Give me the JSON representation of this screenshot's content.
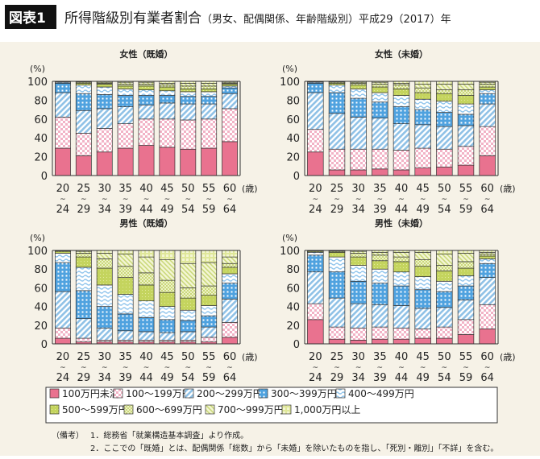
{
  "header": {
    "badge": "図表1",
    "title": "所得階級別有業者割合",
    "subtitle": "（男女、配偶関係、年齢階級別）平成29（2017）年"
  },
  "colors": {
    "background": "#f6f2e7",
    "under100": "#e9728f",
    "r100_199": "#f2b3c6",
    "r200_299": "#8fc1e6",
    "r300_399": "#4fa2df",
    "r400_499": "#a9d3f0",
    "r500_599": "#c4d45e",
    "r600_699": "#d9e3a0",
    "r700_999": "#dce69a",
    "over1000": "#e3ea9e"
  },
  "chart_data": [
    {
      "type": "bar",
      "stacked": true,
      "title": "女性（既婚）",
      "ylabel": "(%)",
      "ylim": [
        0,
        100
      ],
      "yticks": [
        "0",
        "20",
        "40",
        "60",
        "80",
        "100"
      ],
      "xunit": "(歳)",
      "categories": [
        [
          "20",
          "24"
        ],
        [
          "25",
          "29"
        ],
        [
          "30",
          "34"
        ],
        [
          "35",
          "39"
        ],
        [
          "40",
          "44"
        ],
        [
          "45",
          "49"
        ],
        [
          "50",
          "54"
        ],
        [
          "55",
          "59"
        ],
        [
          "60",
          "64"
        ]
      ],
      "values": [
        [
          29,
          33,
          26,
          10,
          1,
          0.5,
          0.3,
          0.2,
          0
        ],
        [
          21,
          24,
          24,
          18,
          9,
          2,
          1,
          0.5,
          0.5
        ],
        [
          25,
          25,
          21,
          15,
          8,
          3,
          1,
          1,
          1
        ],
        [
          29,
          26,
          18,
          12,
          7,
          3,
          2,
          2,
          1
        ],
        [
          32,
          28,
          15,
          10,
          6,
          4,
          2,
          2,
          1
        ],
        [
          30,
          30,
          17,
          8,
          5,
          4,
          2,
          2,
          2
        ],
        [
          28,
          31,
          17,
          8,
          5,
          3,
          3,
          3,
          2
        ],
        [
          29,
          31,
          16,
          8,
          5,
          3,
          3,
          3,
          2
        ],
        [
          36,
          35,
          16,
          6,
          2,
          2,
          1,
          1,
          1
        ]
      ]
    },
    {
      "type": "bar",
      "stacked": true,
      "title": "女性（未婚）",
      "ylabel": "(%)",
      "ylim": [
        0,
        100
      ],
      "yticks": [
        "0",
        "20",
        "40",
        "60",
        "80",
        "100"
      ],
      "xunit": "(歳)",
      "categories": [
        [
          "20",
          "24"
        ],
        [
          "25",
          "29"
        ],
        [
          "30",
          "34"
        ],
        [
          "35",
          "39"
        ],
        [
          "40",
          "44"
        ],
        [
          "45",
          "49"
        ],
        [
          "50",
          "54"
        ],
        [
          "55",
          "59"
        ],
        [
          "60",
          "64"
        ]
      ],
      "values": [
        [
          25,
          24,
          39,
          10,
          1,
          0.5,
          0.3,
          0.2,
          0
        ],
        [
          6,
          22,
          38,
          22,
          8,
          2,
          1,
          0.5,
          0.5
        ],
        [
          6,
          22,
          34,
          20,
          10,
          4,
          2,
          1,
          1
        ],
        [
          7,
          21,
          33,
          17,
          10,
          6,
          3,
          2,
          1
        ],
        [
          6,
          21,
          28,
          18,
          12,
          7,
          4,
          2,
          2
        ],
        [
          8,
          21,
          25,
          16,
          11,
          7,
          5,
          4,
          3
        ],
        [
          9,
          19,
          24,
          15,
          12,
          8,
          4,
          6,
          3
        ],
        [
          11,
          20,
          22,
          12,
          11,
          9,
          6,
          6,
          3
        ],
        [
          21,
          31,
          24,
          11,
          4,
          3,
          3,
          2,
          1
        ]
      ]
    },
    {
      "type": "bar",
      "stacked": true,
      "title": "男性（既婚）",
      "ylabel": "(%)",
      "ylim": [
        0,
        100
      ],
      "yticks": [
        "0",
        "20",
        "40",
        "60",
        "80",
        "100"
      ],
      "xunit": "(歳)",
      "categories": [
        [
          "20",
          "24"
        ],
        [
          "25",
          "29"
        ],
        [
          "30",
          "34"
        ],
        [
          "35",
          "39"
        ],
        [
          "40",
          "44"
        ],
        [
          "45",
          "49"
        ],
        [
          "50",
          "54"
        ],
        [
          "55",
          "59"
        ],
        [
          "60",
          "64"
        ]
      ],
      "values": [
        [
          6,
          11,
          39,
          31,
          10,
          2,
          0.5,
          0.3,
          0.2
        ],
        [
          2,
          4,
          21,
          30,
          25,
          11,
          4,
          2,
          1
        ],
        [
          2,
          2,
          13,
          23,
          23,
          18,
          10,
          6,
          3
        ],
        [
          2,
          2,
          10,
          18,
          21,
          18,
          12,
          13,
          4
        ],
        [
          2,
          2,
          9,
          15,
          18,
          17,
          13,
          17,
          7
        ],
        [
          2,
          2,
          8,
          14,
          14,
          15,
          13,
          22,
          10
        ],
        [
          2,
          2,
          9,
          12,
          11,
          13,
          11,
          26,
          14
        ],
        [
          2,
          5,
          11,
          12,
          11,
          11,
          10,
          25,
          13
        ],
        [
          7,
          16,
          25,
          17,
          10,
          7,
          4,
          7,
          7
        ]
      ]
    },
    {
      "type": "bar",
      "stacked": true,
      "title": "男性（未婚）",
      "ylabel": "(%)",
      "ylim": [
        0,
        100
      ],
      "yticks": [
        "0",
        "20",
        "40",
        "60",
        "80",
        "100"
      ],
      "xunit": "(歳)",
      "categories": [
        [
          "20",
          "24"
        ],
        [
          "25",
          "29"
        ],
        [
          "30",
          "34"
        ],
        [
          "35",
          "39"
        ],
        [
          "40",
          "44"
        ],
        [
          "45",
          "49"
        ],
        [
          "50",
          "54"
        ],
        [
          "55",
          "59"
        ],
        [
          "60",
          "64"
        ]
      ],
      "values": [
        [
          26,
          17,
          34,
          18,
          3,
          1,
          0.5,
          0.3,
          0.2
        ],
        [
          5,
          13,
          31,
          28,
          16,
          5,
          1,
          0.5,
          0.5
        ],
        [
          4,
          13,
          26,
          24,
          17,
          9,
          4,
          2,
          1
        ],
        [
          5,
          13,
          24,
          23,
          15,
          9,
          6,
          3,
          2
        ],
        [
          5,
          12,
          24,
          21,
          15,
          11,
          5,
          5,
          2
        ],
        [
          6,
          10,
          22,
          20,
          14,
          11,
          7,
          8,
          2
        ],
        [
          6,
          12,
          21,
          17,
          11,
          11,
          6,
          12,
          4
        ],
        [
          10,
          16,
          21,
          15,
          11,
          8,
          7,
          9,
          3
        ],
        [
          16,
          26,
          29,
          15,
          5,
          3,
          2,
          2,
          2
        ]
      ]
    }
  ],
  "legend": {
    "position": "bottom",
    "items": [
      "100万円未満",
      "100～199万円",
      "200～299万円",
      "300～399万円",
      "400～499万円",
      "500～599万円",
      "600～699万円",
      "700～999万円",
      "1,000万円以上"
    ]
  },
  "notes": {
    "label": "（備考）",
    "items": [
      "1．総務省「就業構造基本調査」より作成。",
      "2．ここでの「既婚」とは、配偶関係「総数」から「未婚」を除いたものを指し、「死別・離別」「不詳」を含む。"
    ]
  }
}
